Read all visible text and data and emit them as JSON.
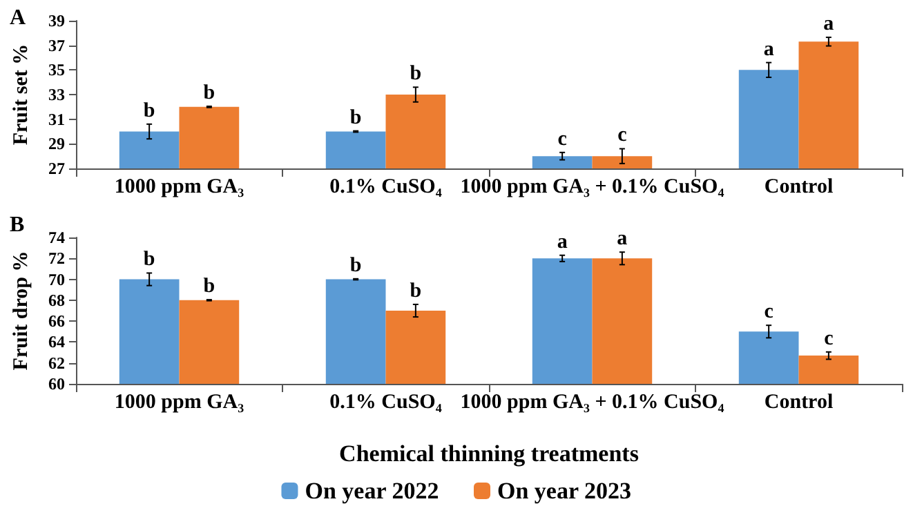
{
  "chart_data": [
    {
      "type": "bar",
      "title": "A",
      "ylabel": "Fruit set %",
      "categories": [
        "1000 ppm GA₃",
        "0.1% CuSO₄",
        "1000 ppm GA₃ + 0.1% CuSO₄",
        "Control"
      ],
      "series": [
        {
          "color": "#5b9bd5",
          "values": [
            30,
            30,
            28,
            35
          ],
          "errors": [
            0.6,
            0.05,
            0.3,
            0.6
          ]
        },
        {
          "color": "#ed7d31",
          "values": [
            32,
            33,
            28,
            37.3
          ],
          "errors": [
            0.05,
            0.6,
            0.6,
            0.35
          ]
        }
      ],
      "ylim": [
        27,
        39
      ],
      "yticks": [
        27,
        29,
        31,
        33,
        35,
        37,
        39
      ],
      "grid": false,
      "legend": false,
      "annotations": [
        {
          "text": "b",
          "x": "1000 ppm GA₃",
          "y": 30
        },
        {
          "text": "b",
          "x": "1000 ppm GA₃",
          "y": 32
        },
        {
          "text": "b",
          "x": "0.1% CuSO₄",
          "y": 30
        },
        {
          "text": "b",
          "x": "0.1% CuSO₄",
          "y": 33
        },
        {
          "text": "c",
          "x": "1000 ppm GA₃ + 0.1% CuSO₄",
          "y": 28
        },
        {
          "text": "c",
          "x": "1000 ppm GA₃ + 0.1% CuSO₄",
          "y": 28
        },
        {
          "text": "a",
          "x": "Control",
          "y": 35
        },
        {
          "text": "a",
          "x": "Control",
          "y": 37.3
        }
      ]
    },
    {
      "type": "bar",
      "title": "B",
      "ylabel": "Fruit drop %",
      "xlabel": "Chemical thinning treatments",
      "categories": [
        "1000 ppm GA₃",
        "0.1% CuSO₄",
        "1000 ppm GA₃ + 0.1% CuSO₄",
        "Control"
      ],
      "series": [
        {
          "name": "On year 2022",
          "color": "#5b9bd5",
          "values": [
            70,
            70,
            72,
            65
          ],
          "errors": [
            0.6,
            0.05,
            0.3,
            0.6
          ]
        },
        {
          "name": "On year 2023",
          "color": "#ed7d31",
          "values": [
            68,
            67,
            72,
            62.7
          ],
          "errors": [
            0.05,
            0.6,
            0.6,
            0.35
          ]
        }
      ],
      "ylim": [
        60,
        74
      ],
      "yticks": [
        60,
        62,
        64,
        66,
        68,
        70,
        72,
        74
      ],
      "grid": false,
      "legend": "bottom",
      "annotations": [
        {
          "text": "b",
          "x": "1000 ppm GA₃",
          "y": 70
        },
        {
          "text": "b",
          "x": "1000 ppm GA₃",
          "y": 68
        },
        {
          "text": "b",
          "x": "0.1% CuSO₄",
          "y": 70
        },
        {
          "text": "b",
          "x": "0.1% CuSO₄",
          "y": 67
        },
        {
          "text": "a",
          "x": "1000 ppm GA₃ + 0.1% CuSO₄",
          "y": 72
        },
        {
          "text": "a",
          "x": "1000 ppm GA₃ + 0.1% CuSO₄",
          "y": 72
        },
        {
          "text": "c",
          "x": "Control",
          "y": 65
        },
        {
          "text": "c",
          "x": "Control",
          "y": 62.7
        }
      ]
    }
  ]
}
